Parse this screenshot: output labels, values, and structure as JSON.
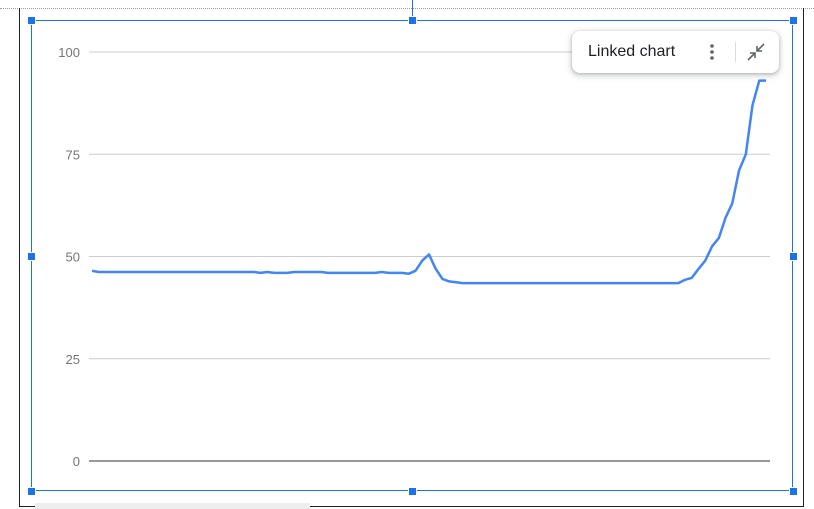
{
  "linked_chip": {
    "label": "Linked chart",
    "menu_icon": "more-vert-icon",
    "collapse_icon": "collapse-arrows-icon"
  },
  "colors": {
    "series": "#4285f4",
    "selection": "#1a73e8",
    "gridline": "#cccccc",
    "baseline": "#333333",
    "tick_text": "#757575"
  },
  "chart_data": {
    "type": "line",
    "title": "",
    "xlabel": "",
    "ylabel": "",
    "ylim": [
      0,
      100
    ],
    "yticks": [
      0,
      25,
      50,
      75,
      100
    ],
    "ytick_labels": [
      "0",
      "25",
      "50",
      "75",
      "100"
    ],
    "grid": true,
    "legend": "none",
    "series": [
      {
        "values": [
          46.5,
          46.2,
          46.2,
          46.2,
          46.2,
          46.2,
          46.2,
          46.2,
          46.2,
          46.2,
          46.2,
          46.2,
          46.2,
          46.2,
          46.2,
          46.2,
          46.2,
          46.2,
          46.2,
          46.2,
          46.2,
          46.2,
          46.2,
          46.2,
          46.2,
          46,
          46.2,
          46,
          46,
          46,
          46.2,
          46.2,
          46.2,
          46.2,
          46.2,
          46,
          46,
          46,
          46,
          46,
          46,
          46,
          46,
          46.2,
          46,
          46,
          46,
          45.8,
          46.5,
          49,
          50.5,
          47,
          44.5,
          43.9,
          43.7,
          43.5,
          43.5,
          43.5,
          43.5,
          43.5,
          43.5,
          43.5,
          43.5,
          43.5,
          43.5,
          43.5,
          43.5,
          43.5,
          43.5,
          43.5,
          43.5,
          43.5,
          43.5,
          43.5,
          43.5,
          43.5,
          43.5,
          43.5,
          43.5,
          43.5,
          43.5,
          43.5,
          43.5,
          43.5,
          43.5,
          43.5,
          43.5,
          43.5,
          44.3,
          44.8,
          47,
          49,
          52.5,
          54.5,
          59.5,
          63,
          71,
          75,
          87,
          93,
          93
        ]
      }
    ]
  }
}
